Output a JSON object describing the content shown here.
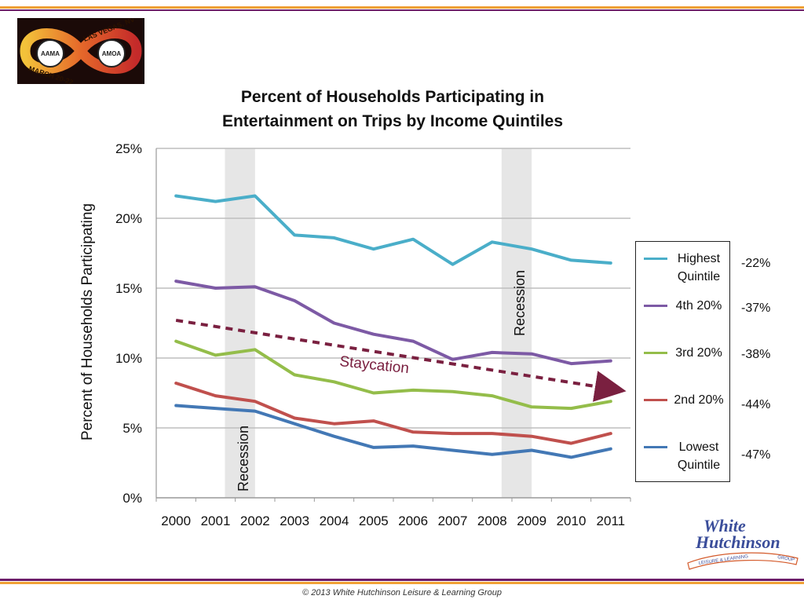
{
  "logos": {
    "event": {
      "top_text": "LAS VEGAS, NV",
      "bottom_text": "MARCH 20-22",
      "left_badge": "AAMA",
      "right_badge": "AMOA"
    },
    "company": {
      "line1": "White",
      "line2": "Hutchinson",
      "tagline": "LEISURE & LEARNING",
      "tagline_end": "GROUP"
    }
  },
  "colors": {
    "orange": "#f0a035",
    "purple": "#6c1d6a",
    "grid": "#bdbdbd",
    "shade": "#e6e6e6",
    "trend": "#7a2040"
  },
  "annotations": {
    "staycation": "Staycation",
    "recession": "Recession"
  },
  "changes": [
    "-22%",
    "-37%",
    "-38%",
    "-44%",
    "-47%"
  ],
  "footer": "© 2013 White Hutchinson Leisure & Learning Group",
  "chart_data": {
    "type": "line",
    "title": [
      "Percent of Households Participating in",
      "Entertainment on Trips by Income Quintiles"
    ],
    "ylabel": "Percent of Households Participating",
    "xlabel": "",
    "x": [
      "2000",
      "2001",
      "2002",
      "2003",
      "2004",
      "2005",
      "2006",
      "2007",
      "2008",
      "2009",
      "2010",
      "2011"
    ],
    "ylim": [
      0,
      25
    ],
    "yticks": [
      "0%",
      "5%",
      "10%",
      "15%",
      "20%",
      "25%"
    ],
    "grid": true,
    "legend": "right",
    "series": [
      {
        "name": "Highest\nQuintile",
        "color": "#4aaec9",
        "values": [
          21.6,
          21.2,
          21.6,
          18.8,
          18.6,
          17.8,
          18.5,
          16.7,
          18.3,
          17.8,
          17.0,
          16.8
        ]
      },
      {
        "name": "4th 20%",
        "color": "#7d5aa5",
        "values": [
          15.5,
          15.0,
          15.1,
          14.1,
          12.5,
          11.7,
          11.2,
          9.9,
          10.4,
          10.3,
          9.6,
          9.8
        ]
      },
      {
        "name": "3rd 20%",
        "color": "#94bd4a",
        "values": [
          11.2,
          10.2,
          10.6,
          8.8,
          8.3,
          7.5,
          7.7,
          7.6,
          7.3,
          6.5,
          6.4,
          6.9
        ]
      },
      {
        "name": "2nd 20%",
        "color": "#c0504d",
        "values": [
          8.2,
          7.3,
          6.9,
          5.7,
          5.3,
          5.5,
          4.7,
          4.6,
          4.6,
          4.4,
          3.9,
          4.6
        ]
      },
      {
        "name": "Lowest\nQuintile",
        "color": "#4378b5",
        "values": [
          6.6,
          6.4,
          6.2,
          5.3,
          4.4,
          3.6,
          3.7,
          3.4,
          3.1,
          3.4,
          2.9,
          3.5
        ]
      }
    ],
    "recession_spans": [
      [
        "2001",
        "2002"
      ],
      [
        "2008",
        "2009"
      ]
    ],
    "trend": {
      "from": [
        "2000",
        12.7
      ],
      "to": [
        "2011",
        7.8
      ]
    }
  }
}
